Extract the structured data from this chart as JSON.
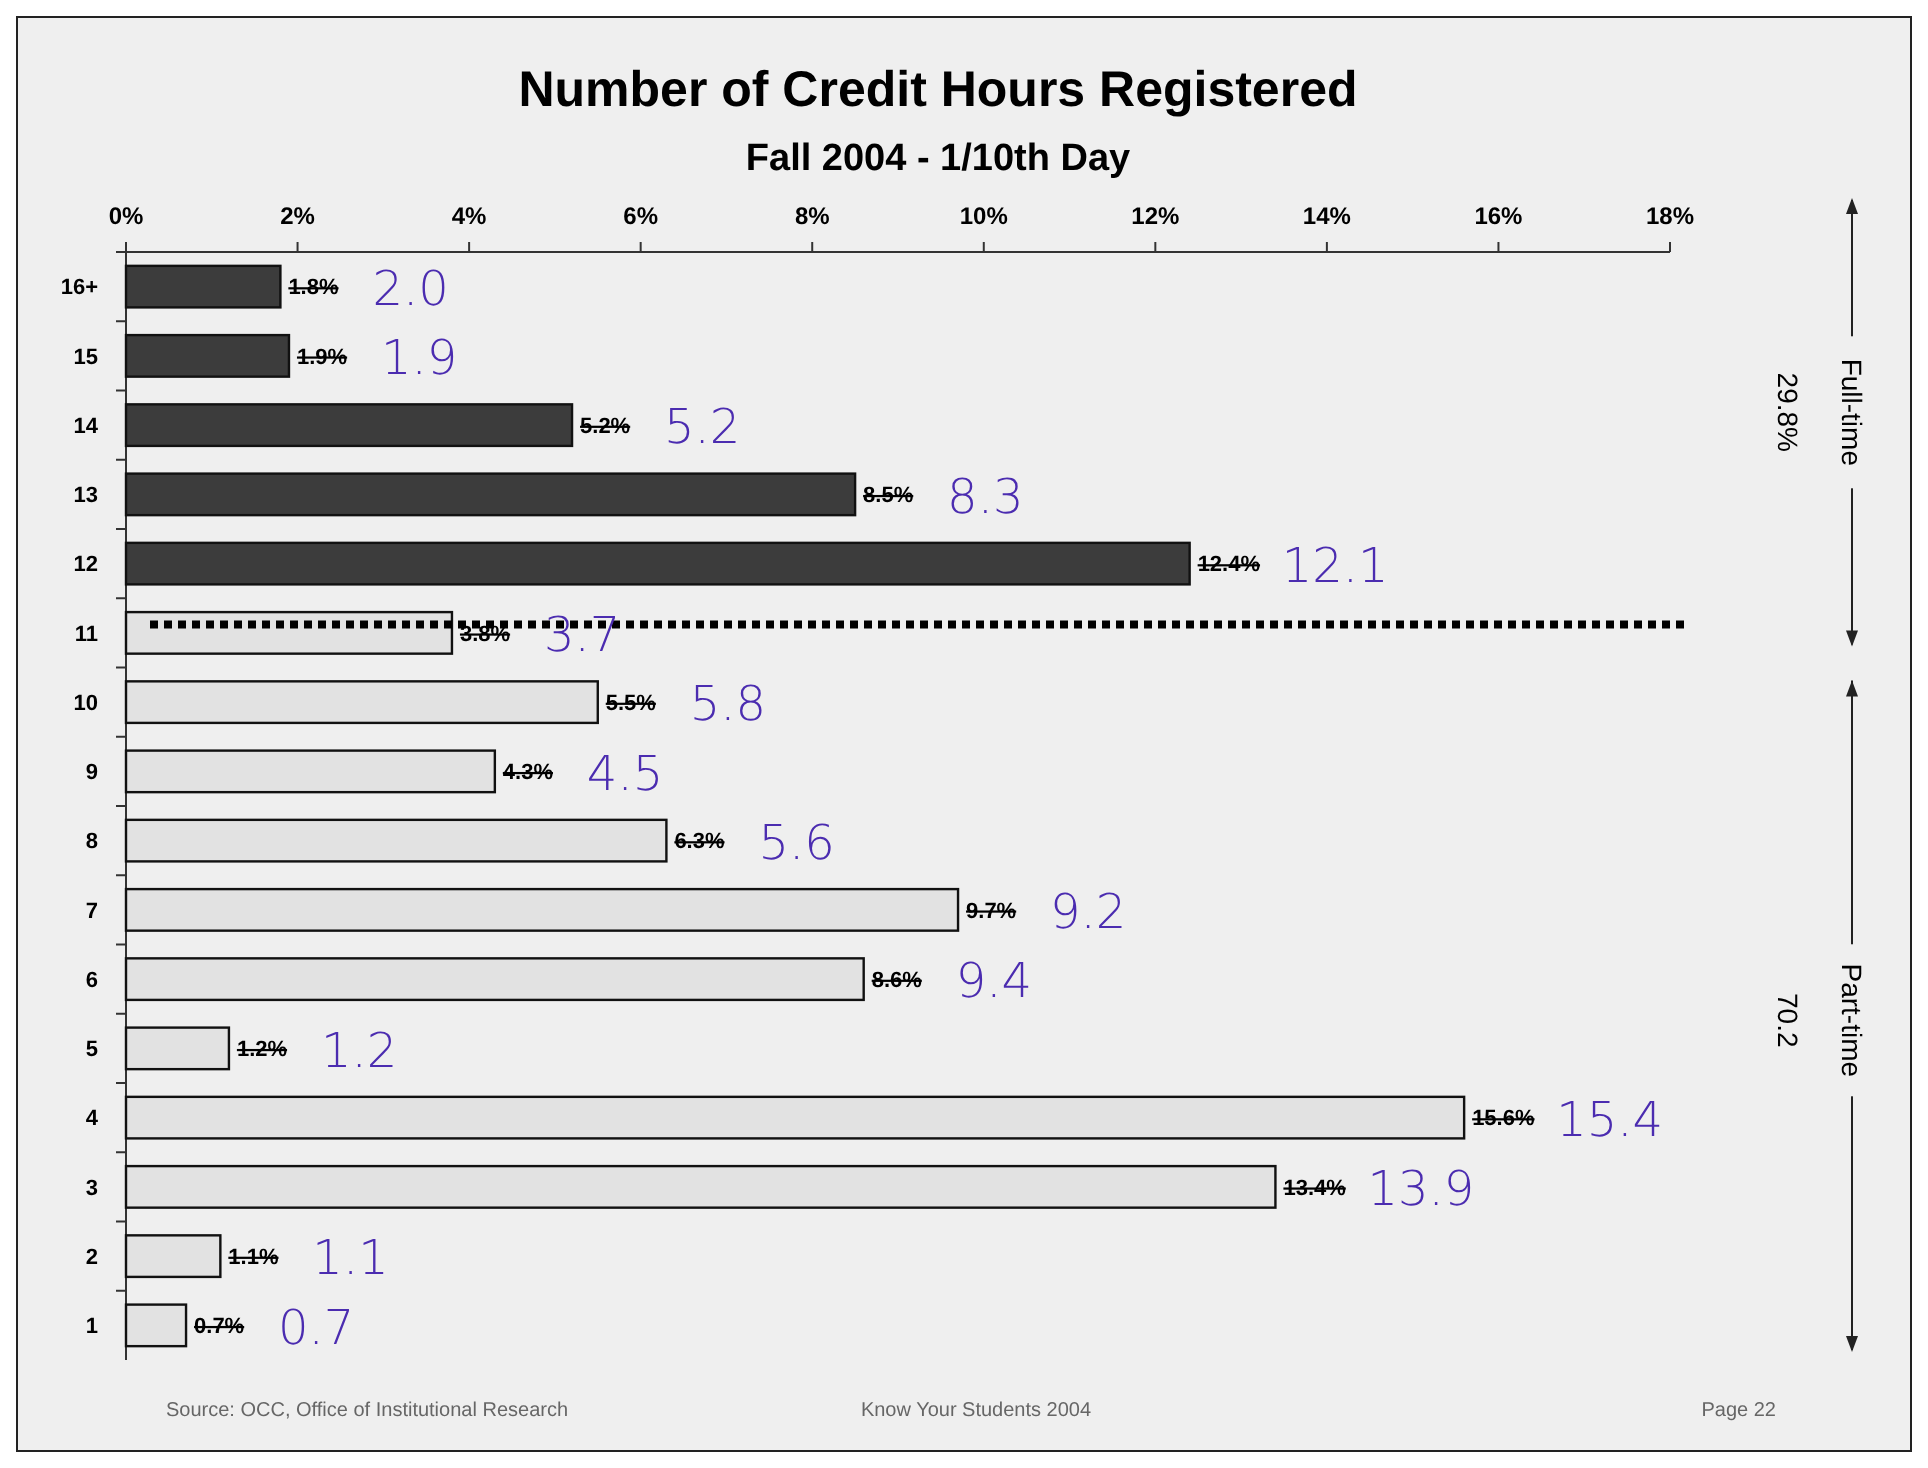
{
  "chart_data": {
    "type": "bar",
    "orientation": "horizontal",
    "title": "Number of Credit Hours Registered",
    "subtitle": "Fall 2004 - 1/10th Day",
    "categories": [
      "16+",
      "15",
      "14",
      "13",
      "12",
      "11",
      "10",
      "9",
      "8",
      "7",
      "6",
      "5",
      "4",
      "3",
      "2",
      "1"
    ],
    "values": [
      1.8,
      1.9,
      5.2,
      8.5,
      12.4,
      3.8,
      5.5,
      4.3,
      6.3,
      9.7,
      8.6,
      1.2,
      15.6,
      13.4,
      1.1,
      0.7
    ],
    "value_labels": [
      "1.8%",
      "1.9%",
      "5.2%",
      "8.5%",
      "12.4%",
      "3.8%",
      "5.5%",
      "4.3%",
      "6.3%",
      "9.7%",
      "8.6%",
      "1.2%",
      "15.6%",
      "13.4%",
      "1.1%",
      "0.7%"
    ],
    "colors": [
      "#3c3c3c",
      "#3c3c3c",
      "#3c3c3c",
      "#3c3c3c",
      "#3c3c3c",
      "#e2e2e2",
      "#e2e2e2",
      "#e2e2e2",
      "#e2e2e2",
      "#e2e2e2",
      "#e2e2e2",
      "#e2e2e2",
      "#e2e2e2",
      "#e2e2e2",
      "#e2e2e2",
      "#e2e2e2"
    ],
    "xlim": [
      0,
      18
    ],
    "xticks": [
      {
        "value": 0,
        "label": "0%"
      },
      {
        "value": 2,
        "label": "2%"
      },
      {
        "value": 4,
        "label": "4%"
      },
      {
        "value": 6,
        "label": "6%"
      },
      {
        "value": 8,
        "label": "8%"
      },
      {
        "value": 10,
        "label": "10%"
      },
      {
        "value": 12,
        "label": "12%"
      },
      {
        "value": 14,
        "label": "14%"
      },
      {
        "value": 16,
        "label": "16%"
      },
      {
        "value": 18,
        "label": "18%"
      }
    ],
    "ref_lines": [
      {
        "axis": "y",
        "value": "11",
        "line_style": "dotted"
      }
    ],
    "grid": false,
    "annotations": [
      {
        "text": "2.0",
        "x": 1.8,
        "y": "16+"
      },
      {
        "text": "1.9",
        "x": 1.9,
        "y": "15"
      },
      {
        "text": "5.2",
        "x": 5.2,
        "y": "14"
      },
      {
        "text": "8.3",
        "x": 8.5,
        "y": "13"
      },
      {
        "text": "12.1",
        "x": 12.4,
        "y": "12"
      },
      {
        "text": "3.7",
        "x": 3.8,
        "y": "11"
      },
      {
        "text": "5.8",
        "x": 5.5,
        "y": "10"
      },
      {
        "text": "4.5",
        "x": 4.3,
        "y": "9"
      },
      {
        "text": "5.6",
        "x": 6.3,
        "y": "8"
      },
      {
        "text": "9.2",
        "x": 9.7,
        "y": "7"
      },
      {
        "text": "9.4",
        "x": 8.6,
        "y": "6"
      },
      {
        "text": "1.2",
        "x": 1.2,
        "y": "5"
      },
      {
        "text": "15.4",
        "x": 15.6,
        "y": "4"
      },
      {
        "text": "13.9",
        "x": 13.4,
        "y": "3"
      },
      {
        "text": "1.1",
        "x": 1.1,
        "y": "2"
      },
      {
        "text": "0.7",
        "x": 0.7,
        "y": "1"
      },
      "Full-time",
      "29.8%",
      "Part-time",
      "70.2",
      "Source: OCC, Office of Institutional Research",
      "Know Your Students 2004",
      "Page 22"
    ]
  }
}
